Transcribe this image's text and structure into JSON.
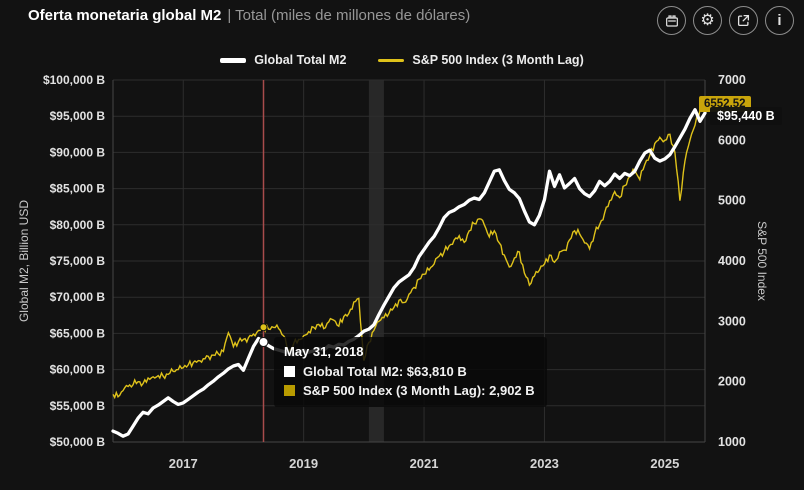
{
  "header": {
    "title": "Oferta monetaria global M2",
    "subtitle": "| Total (miles de millones de dólares)",
    "buttons": [
      {
        "label": "snapshot",
        "icon": "camera-icon"
      },
      {
        "label": "settings",
        "icon": "gear-icon"
      },
      {
        "label": "export",
        "icon": "external-link-icon"
      },
      {
        "label": "info",
        "icon": "info-icon"
      }
    ]
  },
  "legend": [
    {
      "label": "Global Total M2",
      "color": "#ffffff"
    },
    {
      "label": "S&P 500 Index (3 Month Lag)",
      "color": "#dfc21a"
    }
  ],
  "tooltip": {
    "date": "May 31, 2018",
    "rows": [
      {
        "text": "Global Total M2: $63,810 B",
        "color": "#ffffff"
      },
      {
        "text": "S&P 500 Index (3 Month Lag): 2,902 B",
        "color": "#b89b00"
      }
    ]
  },
  "badges": {
    "sp500": "6552.52",
    "m2": "$95,440 B"
  },
  "chart_data": {
    "type": "line",
    "title": "Oferta monetaria global M2 | Total (miles de millones de dólares)",
    "x_start": "2015-11",
    "x_end": "2025-09",
    "x_tick_labels": [
      "2017",
      "2019",
      "2021",
      "2023",
      "2025"
    ],
    "grid": true,
    "legend_position": "top",
    "left_axis": {
      "label": "Global M2, Billion USD",
      "min": 50000,
      "max": 100000,
      "tick_step": 5000,
      "tick_labels": [
        "$50,000 B",
        "$55,000 B",
        "$60,000 B",
        "$65,000 B",
        "$70,000 B",
        "$75,000 B",
        "$80,000 B",
        "$85,000 B",
        "$90,000 B",
        "$95,000 B",
        "$100,000 B"
      ]
    },
    "right_axis": {
      "label": "S&P 500 Index",
      "min": 1000,
      "max": 7000,
      "tick_step": 1000,
      "tick_labels": [
        "1000",
        "2000",
        "3000",
        "4000",
        "5000",
        "6000",
        "7000"
      ]
    },
    "recession_band": {
      "from": "2020-02",
      "to": "2020-05",
      "color": "#282828"
    },
    "crosshair": {
      "date": "2018-05",
      "color": "#a84c4c"
    },
    "tooltip_point": {
      "date": "May 31, 2018",
      "m2": 63810,
      "sp500": 2902
    },
    "last_values": {
      "m2": 95440,
      "sp500": 6552.52
    },
    "series": [
      {
        "name": "Global Total M2",
        "axis": "left",
        "color": "#ffffff",
        "width": 3.3,
        "values": [
          51500,
          51200,
          50800,
          51100,
          52200,
          53300,
          54100,
          53900,
          54700,
          55100,
          55600,
          56100,
          55600,
          55200,
          55400,
          55900,
          56400,
          56900,
          57300,
          57900,
          58400,
          59000,
          59500,
          60100,
          60500,
          60700,
          59900,
          61600,
          63200,
          64300,
          63810,
          63300,
          62900,
          62700,
          62500,
          62300,
          62000,
          62400,
          62700,
          62400,
          62600,
          62900,
          62700,
          63300,
          63100,
          63500,
          63400,
          63900,
          64200,
          64700,
          65300,
          65600,
          66200,
          67600,
          68900,
          70100,
          71300,
          72100,
          72600,
          73100,
          74100,
          75600,
          76600,
          77600,
          78400,
          79600,
          81000,
          81700,
          82000,
          82500,
          82800,
          83400,
          83700,
          83500,
          84400,
          85900,
          87400,
          87600,
          86100,
          84900,
          84400,
          83600,
          81900,
          80400,
          80000,
          81300,
          83500,
          87400,
          85300,
          86900,
          85100,
          85700,
          86400,
          85000,
          84300,
          83900,
          84700,
          86000,
          85400,
          86000,
          87000,
          86400,
          87100,
          86800,
          87400,
          88800,
          89900,
          90300,
          89200,
          88800,
          89100,
          89700,
          90800,
          92000,
          93200,
          94700,
          95900,
          94300,
          95440
        ]
      },
      {
        "name": "S&P 500 Index (3 Month Lag)",
        "axis": "right",
        "color": "#dfc21a",
        "width": 1.4,
        "values": [
          1790,
          1750,
          1850,
          1920,
          1950,
          2000,
          1970,
          2060,
          2080,
          2100,
          2090,
          2120,
          2170,
          2200,
          2230,
          2280,
          2320,
          2350,
          2380,
          2420,
          2440,
          2460,
          2500,
          2810,
          2580,
          2660,
          2700,
          2730,
          2790,
          2850,
          2902,
          2870,
          2900,
          2880,
          2760,
          2480,
          2630,
          2700,
          2760,
          2830,
          2900,
          2950,
          2880,
          2990,
          3020,
          2920,
          3080,
          3130,
          3320,
          3380,
          2350,
          2650,
          2850,
          3000,
          3060,
          3130,
          3230,
          3350,
          3310,
          3450,
          3560,
          3700,
          3780,
          3850,
          3950,
          4080,
          4150,
          4250,
          4350,
          4420,
          4310,
          4500,
          4620,
          4700,
          4600,
          4400,
          4500,
          4300,
          4100,
          3900,
          4050,
          4150,
          3800,
          3600,
          3750,
          3850,
          3950,
          4100,
          3980,
          4150,
          4180,
          4350,
          4500,
          4450,
          4300,
          4200,
          4450,
          4600,
          4800,
          5000,
          5150,
          5050,
          5250,
          5400,
          5500,
          5350,
          5600,
          5750,
          5950,
          6050,
          6000,
          6100,
          5800,
          5000,
          5650,
          6000,
          6250,
          6500,
          6552.52
        ]
      }
    ]
  }
}
